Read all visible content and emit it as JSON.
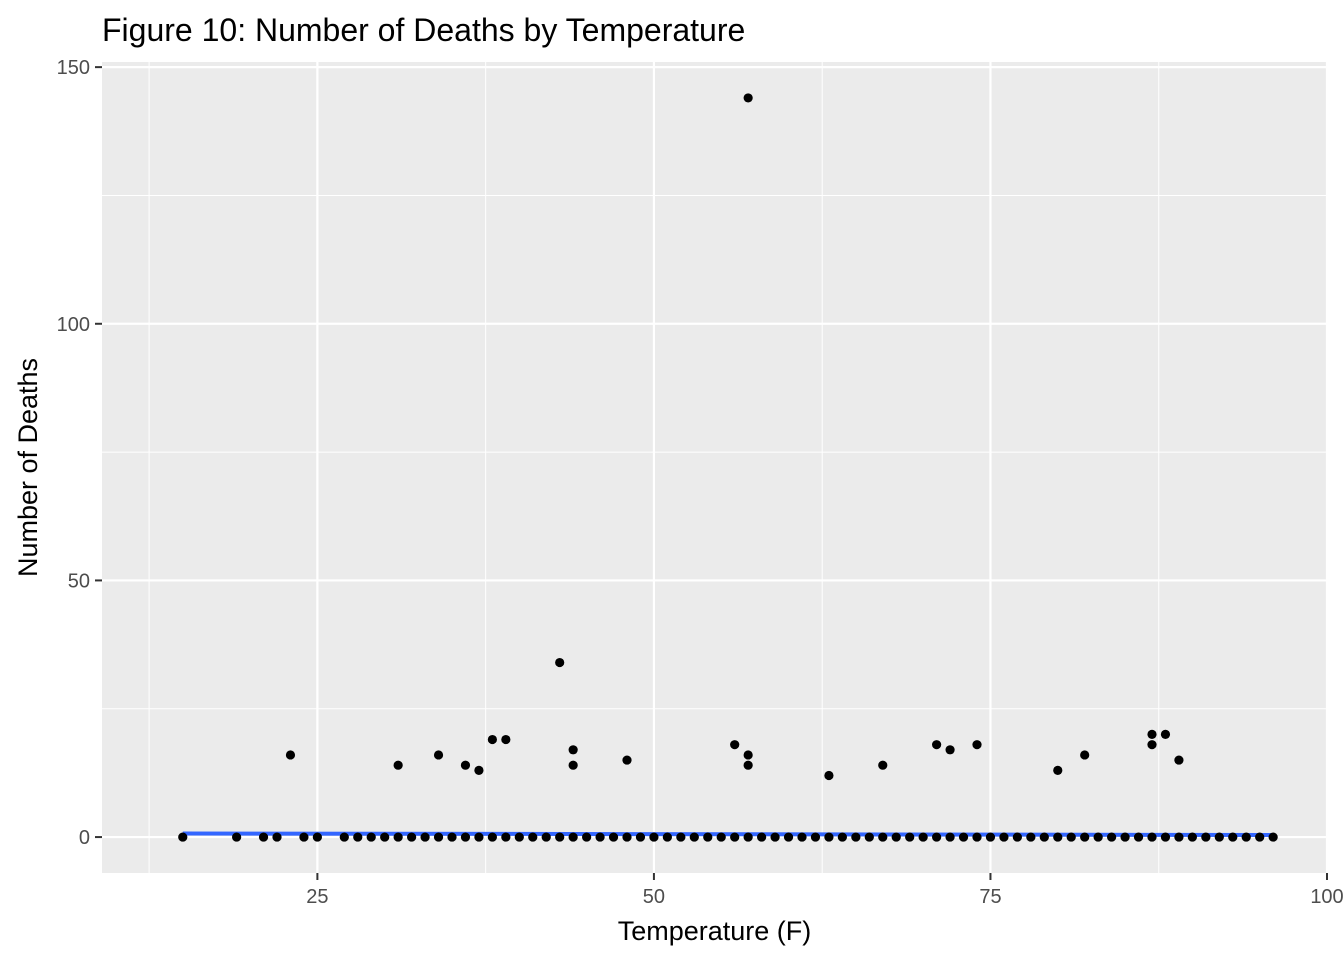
{
  "chart_data": {
    "type": "scatter",
    "title": "Figure 10: Number of Deaths by Temperature",
    "xlabel": "Temperature (F)",
    "ylabel": "Number of Deaths",
    "xlim": [
      9,
      100
    ],
    "ylim": [
      -7,
      151
    ],
    "x_ticks": [
      25,
      50,
      75,
      100
    ],
    "x_tick_labels": [
      "25",
      "50",
      "75",
      "100"
    ],
    "y_ticks": [
      0,
      50,
      100,
      150
    ],
    "y_tick_labels": [
      "0",
      "50",
      "100",
      "150"
    ],
    "grid": true,
    "background": "#ebebeb",
    "point_color": "#000000",
    "trend_color": "#3366ff",
    "series": [
      {
        "points": [
          {
            "x": 15,
            "y": 0
          },
          {
            "x": 19,
            "y": 0
          },
          {
            "x": 21,
            "y": 0
          },
          {
            "x": 22,
            "y": 0
          },
          {
            "x": 23,
            "y": 16
          },
          {
            "x": 24,
            "y": 0
          },
          {
            "x": 25,
            "y": 0
          },
          {
            "x": 27,
            "y": 0
          },
          {
            "x": 28,
            "y": 0
          },
          {
            "x": 29,
            "y": 0
          },
          {
            "x": 30,
            "y": 0
          },
          {
            "x": 31,
            "y": 0
          },
          {
            "x": 31,
            "y": 14
          },
          {
            "x": 32,
            "y": 0
          },
          {
            "x": 33,
            "y": 0
          },
          {
            "x": 34,
            "y": 0
          },
          {
            "x": 34,
            "y": 16
          },
          {
            "x": 35,
            "y": 0
          },
          {
            "x": 36,
            "y": 0
          },
          {
            "x": 36,
            "y": 14
          },
          {
            "x": 37,
            "y": 0
          },
          {
            "x": 37,
            "y": 13
          },
          {
            "x": 38,
            "y": 0
          },
          {
            "x": 38,
            "y": 19
          },
          {
            "x": 39,
            "y": 0
          },
          {
            "x": 39,
            "y": 19
          },
          {
            "x": 40,
            "y": 0
          },
          {
            "x": 41,
            "y": 0
          },
          {
            "x": 42,
            "y": 0
          },
          {
            "x": 43,
            "y": 0
          },
          {
            "x": 43,
            "y": 34
          },
          {
            "x": 44,
            "y": 0
          },
          {
            "x": 44,
            "y": 14
          },
          {
            "x": 44,
            "y": 17
          },
          {
            "x": 45,
            "y": 0
          },
          {
            "x": 46,
            "y": 0
          },
          {
            "x": 47,
            "y": 0
          },
          {
            "x": 48,
            "y": 0
          },
          {
            "x": 48,
            "y": 15
          },
          {
            "x": 49,
            "y": 0
          },
          {
            "x": 50,
            "y": 0
          },
          {
            "x": 51,
            "y": 0
          },
          {
            "x": 52,
            "y": 0
          },
          {
            "x": 53,
            "y": 0
          },
          {
            "x": 54,
            "y": 0
          },
          {
            "x": 55,
            "y": 0
          },
          {
            "x": 56,
            "y": 0
          },
          {
            "x": 56,
            "y": 18
          },
          {
            "x": 57,
            "y": 0
          },
          {
            "x": 57,
            "y": 14
          },
          {
            "x": 57,
            "y": 16
          },
          {
            "x": 57,
            "y": 144
          },
          {
            "x": 58,
            "y": 0
          },
          {
            "x": 59,
            "y": 0
          },
          {
            "x": 60,
            "y": 0
          },
          {
            "x": 61,
            "y": 0
          },
          {
            "x": 62,
            "y": 0
          },
          {
            "x": 63,
            "y": 0
          },
          {
            "x": 63,
            "y": 12
          },
          {
            "x": 64,
            "y": 0
          },
          {
            "x": 65,
            "y": 0
          },
          {
            "x": 66,
            "y": 0
          },
          {
            "x": 67,
            "y": 0
          },
          {
            "x": 67,
            "y": 14
          },
          {
            "x": 68,
            "y": 0
          },
          {
            "x": 69,
            "y": 0
          },
          {
            "x": 70,
            "y": 0
          },
          {
            "x": 71,
            "y": 0
          },
          {
            "x": 71,
            "y": 18
          },
          {
            "x": 72,
            "y": 0
          },
          {
            "x": 72,
            "y": 17
          },
          {
            "x": 73,
            "y": 0
          },
          {
            "x": 74,
            "y": 0
          },
          {
            "x": 74,
            "y": 18
          },
          {
            "x": 75,
            "y": 0
          },
          {
            "x": 76,
            "y": 0
          },
          {
            "x": 77,
            "y": 0
          },
          {
            "x": 78,
            "y": 0
          },
          {
            "x": 79,
            "y": 0
          },
          {
            "x": 80,
            "y": 0
          },
          {
            "x": 80,
            "y": 13
          },
          {
            "x": 81,
            "y": 0
          },
          {
            "x": 82,
            "y": 0
          },
          {
            "x": 82,
            "y": 16
          },
          {
            "x": 83,
            "y": 0
          },
          {
            "x": 84,
            "y": 0
          },
          {
            "x": 85,
            "y": 0
          },
          {
            "x": 86,
            "y": 0
          },
          {
            "x": 87,
            "y": 0
          },
          {
            "x": 87,
            "y": 18
          },
          {
            "x": 87,
            "y": 20
          },
          {
            "x": 88,
            "y": 0
          },
          {
            "x": 88,
            "y": 20
          },
          {
            "x": 89,
            "y": 0
          },
          {
            "x": 89,
            "y": 15
          },
          {
            "x": 90,
            "y": 0
          },
          {
            "x": 91,
            "y": 0
          },
          {
            "x": 92,
            "y": 0
          },
          {
            "x": 93,
            "y": 0
          },
          {
            "x": 94,
            "y": 0
          },
          {
            "x": 95,
            "y": 0
          },
          {
            "x": 96,
            "y": 0
          }
        ]
      }
    ],
    "trend_line": [
      {
        "x": 15,
        "y": 0.7
      },
      {
        "x": 96,
        "y": 0.4
      }
    ]
  }
}
